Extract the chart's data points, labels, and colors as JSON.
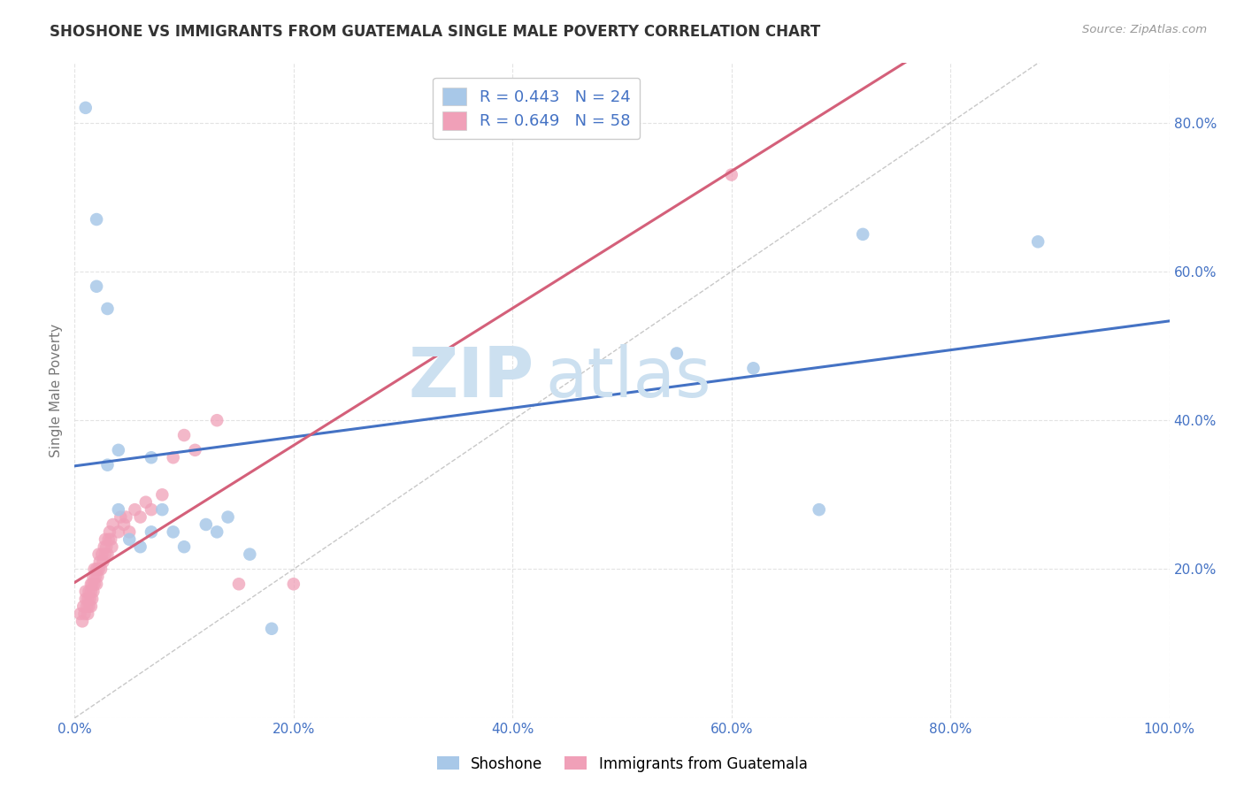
{
  "title": "SHOSHONE VS IMMIGRANTS FROM GUATEMALA SINGLE MALE POVERTY CORRELATION CHART",
  "source": "Source: ZipAtlas.com",
  "ylabel": "Single Male Poverty",
  "legend_label1": "Shoshone",
  "legend_label2": "Immigrants from Guatemala",
  "R1": 0.443,
  "N1": 24,
  "R2": 0.649,
  "N2": 58,
  "color1": "#a8c8e8",
  "color2": "#f0a0b8",
  "line_color1": "#4472c4",
  "line_color2": "#d4607a",
  "diagonal_color": "#c8c8c8",
  "watermark_color": "#cce0f0",
  "shoshone_x": [
    0.01,
    0.02,
    0.02,
    0.03,
    0.03,
    0.04,
    0.04,
    0.05,
    0.06,
    0.07,
    0.07,
    0.08,
    0.09,
    0.1,
    0.12,
    0.13,
    0.14,
    0.16,
    0.18,
    0.55,
    0.62,
    0.68,
    0.72,
    0.88
  ],
  "shoshone_y": [
    0.82,
    0.67,
    0.58,
    0.55,
    0.34,
    0.36,
    0.28,
    0.24,
    0.23,
    0.25,
    0.35,
    0.28,
    0.25,
    0.23,
    0.26,
    0.25,
    0.27,
    0.22,
    0.12,
    0.49,
    0.47,
    0.28,
    0.65,
    0.64
  ],
  "guatemala_x": [
    0.005,
    0.007,
    0.008,
    0.009,
    0.01,
    0.01,
    0.011,
    0.012,
    0.012,
    0.013,
    0.013,
    0.014,
    0.015,
    0.015,
    0.015,
    0.016,
    0.016,
    0.017,
    0.017,
    0.018,
    0.018,
    0.019,
    0.02,
    0.02,
    0.021,
    0.022,
    0.022,
    0.023,
    0.024,
    0.025,
    0.026,
    0.027,
    0.028,
    0.028,
    0.029,
    0.03,
    0.031,
    0.032,
    0.033,
    0.034,
    0.035,
    0.04,
    0.042,
    0.045,
    0.047,
    0.05,
    0.055,
    0.06,
    0.065,
    0.07,
    0.08,
    0.09,
    0.1,
    0.11,
    0.13,
    0.15,
    0.2,
    0.6
  ],
  "guatemala_y": [
    0.14,
    0.13,
    0.15,
    0.14,
    0.16,
    0.17,
    0.15,
    0.14,
    0.16,
    0.15,
    0.17,
    0.16,
    0.15,
    0.17,
    0.18,
    0.16,
    0.18,
    0.17,
    0.19,
    0.18,
    0.2,
    0.19,
    0.18,
    0.2,
    0.19,
    0.2,
    0.22,
    0.21,
    0.2,
    0.22,
    0.21,
    0.23,
    0.22,
    0.24,
    0.23,
    0.22,
    0.24,
    0.25,
    0.24,
    0.23,
    0.26,
    0.25,
    0.27,
    0.26,
    0.27,
    0.25,
    0.28,
    0.27,
    0.29,
    0.28,
    0.3,
    0.35,
    0.38,
    0.36,
    0.4,
    0.18,
    0.18,
    0.73
  ],
  "xlim": [
    0.0,
    1.0
  ],
  "ylim": [
    0.0,
    0.88
  ],
  "xticks": [
    0.0,
    0.2,
    0.4,
    0.6,
    0.8,
    1.0
  ],
  "xtick_labels": [
    "0.0%",
    "20.0%",
    "40.0%",
    "60.0%",
    "80.0%",
    "100.0%"
  ],
  "yticks": [
    0.0,
    0.2,
    0.4,
    0.6,
    0.8
  ],
  "ytick_labels_right": [
    "",
    "20.0%",
    "40.0%",
    "60.0%",
    "80.0%"
  ],
  "background_color": "#ffffff",
  "grid_color": "#dddddd",
  "tick_color": "#4472c4",
  "title_color": "#333333",
  "source_color": "#999999",
  "ylabel_color": "#777777"
}
